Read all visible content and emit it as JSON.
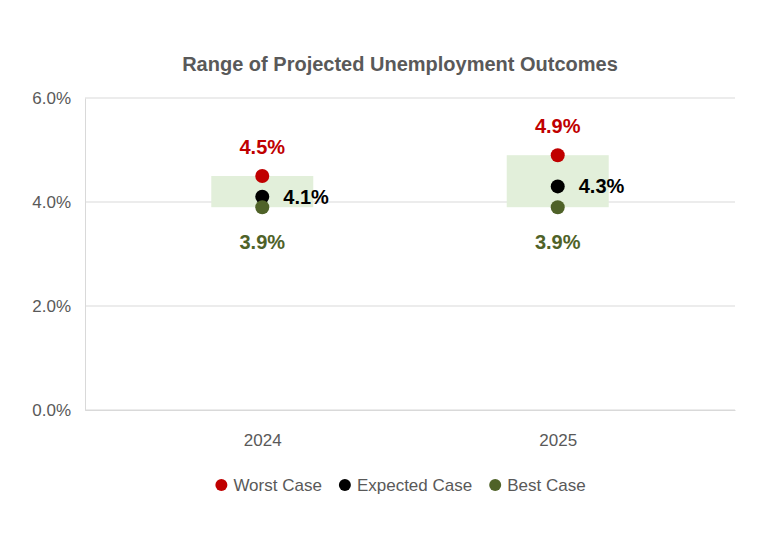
{
  "chart_data": {
    "type": "range_dot",
    "title": "Range of Projected Unemployment Outcomes",
    "categories": [
      "2024",
      "2025"
    ],
    "series": [
      {
        "name": "Worst Case",
        "color": "#c00000",
        "marker": "circle",
        "values": [
          4.5,
          4.9
        ],
        "value_labels": [
          "4.5%",
          "4.9%"
        ]
      },
      {
        "name": "Expected Case",
        "color": "#000000",
        "marker": "circle",
        "values": [
          4.1,
          4.3
        ],
        "value_labels": [
          "4.1%",
          "4.3%"
        ]
      },
      {
        "name": "Best Case",
        "color": "#4f6228",
        "marker": "circle",
        "values": [
          3.9,
          3.9
        ],
        "value_labels": [
          "3.9%",
          "3.9%"
        ]
      }
    ],
    "ylim": [
      0,
      6
    ],
    "yticks": [
      {
        "value": 0,
        "label": "0.0%"
      },
      {
        "value": 2,
        "label": "2.0%"
      },
      {
        "value": 4,
        "label": "4.0%"
      },
      {
        "value": 6,
        "label": "6.0%"
      }
    ],
    "grid": true,
    "legend": "bottom",
    "data_labels": true
  }
}
